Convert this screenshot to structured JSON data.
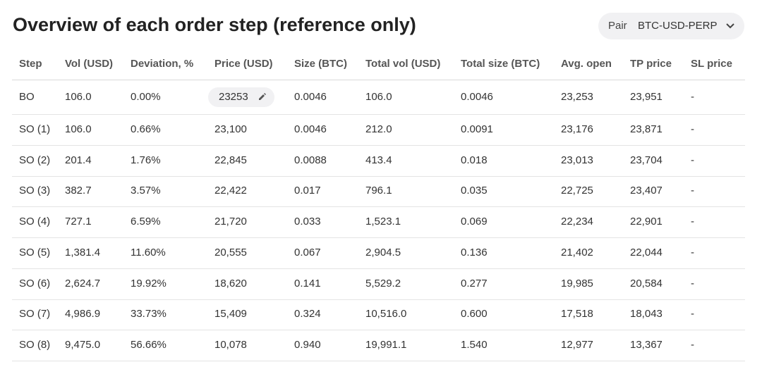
{
  "header": {
    "title": "Overview of each order step (reference only)",
    "pair_label": "Pair",
    "pair_value": "BTC-USD-PERP"
  },
  "table": {
    "columns": [
      "Step",
      "Vol (USD)",
      "Deviation, %",
      "Price (USD)",
      "Size (BTC)",
      "Total vol (USD)",
      "Total size (BTC)",
      "Avg. open",
      "TP price",
      "SL price"
    ],
    "rows": [
      [
        "BO",
        "106.0",
        "0.00%",
        "23253",
        "0.0046",
        "106.0",
        "0.0046",
        "23,253",
        "23,951",
        "-"
      ],
      [
        "SO (1)",
        "106.0",
        "0.66%",
        "23,100",
        "0.0046",
        "212.0",
        "0.0091",
        "23,176",
        "23,871",
        "-"
      ],
      [
        "SO (2)",
        "201.4",
        "1.76%",
        "22,845",
        "0.0088",
        "413.4",
        "0.018",
        "23,013",
        "23,704",
        "-"
      ],
      [
        "SO (3)",
        "382.7",
        "3.57%",
        "22,422",
        "0.017",
        "796.1",
        "0.035",
        "22,725",
        "23,407",
        "-"
      ],
      [
        "SO (4)",
        "727.1",
        "6.59%",
        "21,720",
        "0.033",
        "1,523.1",
        "0.069",
        "22,234",
        "22,901",
        "-"
      ],
      [
        "SO (5)",
        "1,381.4",
        "11.60%",
        "20,555",
        "0.067",
        "2,904.5",
        "0.136",
        "21,402",
        "22,044",
        "-"
      ],
      [
        "SO (6)",
        "2,624.7",
        "19.92%",
        "18,620",
        "0.141",
        "5,529.2",
        "0.277",
        "19,985",
        "20,584",
        "-"
      ],
      [
        "SO (7)",
        "4,986.9",
        "33.73%",
        "15,409",
        "0.324",
        "10,516.0",
        "0.600",
        "17,518",
        "18,043",
        "-"
      ],
      [
        "SO (8)",
        "9,475.0",
        "56.66%",
        "10,078",
        "0.940",
        "19,991.1",
        "1.540",
        "12,977",
        "13,367",
        "-"
      ]
    ]
  }
}
